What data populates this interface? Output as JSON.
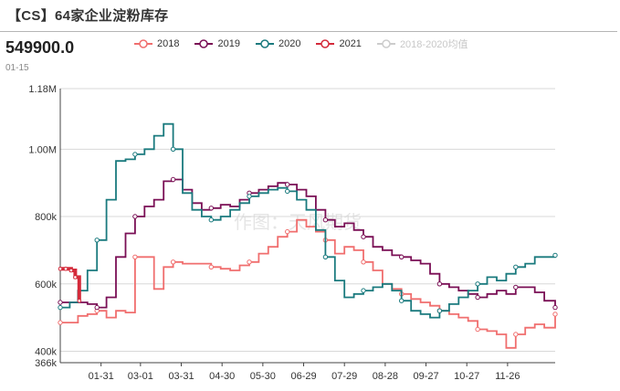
{
  "header": {
    "title": "【CS】64家企业淀粉库存",
    "value": "549900.0",
    "date": "01-15"
  },
  "watermark": "作图：天风期货",
  "legend": [
    {
      "label": "2018",
      "color": "#f06e6e",
      "faded": false
    },
    {
      "label": "2019",
      "color": "#7a0f55",
      "faded": false
    },
    {
      "label": "2020",
      "color": "#1a7a7e",
      "faded": false
    },
    {
      "label": "2021",
      "color": "#d42a3a",
      "faded": false
    },
    {
      "label": "2018-2020均值",
      "color": "#cccccc",
      "faded": true
    }
  ],
  "chart_data": {
    "type": "line",
    "title": "【CS】64家企业淀粉库存",
    "ylim": [
      366000,
      1180000
    ],
    "y_ticks": [
      "1.18M",
      "1.00M",
      "800k",
      "600k",
      "400k",
      "366k"
    ],
    "x_ticks": [
      "01-31",
      "03-01",
      "03-31",
      "04-30",
      "05-30",
      "06-29",
      "07-29",
      "08-28",
      "09-27",
      "10-27",
      "11-26"
    ],
    "grid": true,
    "series": [
      {
        "name": "2018",
        "color": "#f06e6e",
        "x": [
          "01-01",
          "01-08",
          "01-14",
          "01-21",
          "01-28",
          "02-04",
          "02-11",
          "02-18",
          "02-25",
          "03-04",
          "03-11",
          "03-18",
          "03-25",
          "04-01",
          "04-08",
          "04-15",
          "04-22",
          "04-29",
          "05-06",
          "05-13",
          "05-20",
          "05-27",
          "06-03",
          "06-10",
          "06-17",
          "06-24",
          "07-01",
          "07-08",
          "07-15",
          "07-22",
          "07-29",
          "08-05",
          "08-12",
          "08-19",
          "08-26",
          "09-02",
          "09-09",
          "09-16",
          "09-23",
          "09-30",
          "10-07",
          "10-14",
          "10-21",
          "10-28",
          "11-04",
          "11-11",
          "11-18",
          "11-25",
          "12-02",
          "12-09",
          "12-16",
          "12-23",
          "12-31"
        ],
        "values": [
          485000,
          485000,
          505000,
          510000,
          520000,
          500000,
          520000,
          515000,
          680000,
          680000,
          585000,
          650000,
          665000,
          660000,
          660000,
          660000,
          650000,
          645000,
          640000,
          655000,
          665000,
          690000,
          710000,
          740000,
          755000,
          790000,
          770000,
          755000,
          730000,
          690000,
          710000,
          700000,
          665000,
          640000,
          600000,
          585000,
          570000,
          555000,
          545000,
          535000,
          520000,
          510000,
          500000,
          490000,
          465000,
          460000,
          450000,
          410000,
          450000,
          470000,
          480000,
          470000,
          510000
        ]
      },
      {
        "name": "2019",
        "color": "#7a0f55",
        "x": [
          "01-01",
          "01-08",
          "01-14",
          "01-21",
          "01-28",
          "02-04",
          "02-11",
          "02-18",
          "02-25",
          "03-04",
          "03-11",
          "03-18",
          "03-25",
          "04-01",
          "04-08",
          "04-15",
          "04-22",
          "04-29",
          "05-06",
          "05-13",
          "05-20",
          "05-27",
          "06-03",
          "06-10",
          "06-17",
          "06-24",
          "07-01",
          "07-08",
          "07-15",
          "07-22",
          "07-29",
          "08-05",
          "08-12",
          "08-19",
          "08-26",
          "09-02",
          "09-09",
          "09-16",
          "09-23",
          "09-30",
          "10-07",
          "10-14",
          "10-21",
          "10-28",
          "11-04",
          "11-11",
          "11-18",
          "11-25",
          "12-02",
          "12-09",
          "12-16",
          "12-23",
          "12-31"
        ],
        "values": [
          545000,
          545000,
          545000,
          540000,
          530000,
          560000,
          680000,
          750000,
          800000,
          830000,
          850000,
          905000,
          910000,
          880000,
          840000,
          820000,
          825000,
          835000,
          830000,
          850000,
          870000,
          880000,
          890000,
          900000,
          895000,
          880000,
          860000,
          820000,
          790000,
          770000,
          780000,
          760000,
          740000,
          710000,
          700000,
          685000,
          680000,
          670000,
          660000,
          630000,
          600000,
          590000,
          580000,
          570000,
          560000,
          570000,
          580000,
          570000,
          590000,
          590000,
          575000,
          550000,
          530000
        ]
      },
      {
        "name": "2020",
        "color": "#1a7a7e",
        "x": [
          "01-01",
          "01-08",
          "01-14",
          "01-21",
          "01-28",
          "02-04",
          "02-11",
          "02-18",
          "02-25",
          "03-04",
          "03-11",
          "03-18",
          "03-25",
          "04-01",
          "04-08",
          "04-15",
          "04-22",
          "04-29",
          "05-06",
          "05-13",
          "05-20",
          "05-27",
          "06-03",
          "06-10",
          "06-17",
          "06-24",
          "07-01",
          "07-08",
          "07-15",
          "07-22",
          "07-29",
          "08-05",
          "08-12",
          "08-19",
          "08-26",
          "09-02",
          "09-09",
          "09-16",
          "09-23",
          "09-30",
          "10-07",
          "10-14",
          "10-21",
          "10-28",
          "11-04",
          "11-11",
          "11-18",
          "11-25",
          "12-02",
          "12-09",
          "12-16",
          "12-23",
          "12-31"
        ],
        "values": [
          530000,
          545000,
          580000,
          640000,
          730000,
          850000,
          965000,
          970000,
          985000,
          1000000,
          1040000,
          1075000,
          1000000,
          870000,
          820000,
          800000,
          790000,
          800000,
          820000,
          840000,
          860000,
          870000,
          880000,
          885000,
          875000,
          850000,
          820000,
          760000,
          680000,
          610000,
          560000,
          570000,
          580000,
          590000,
          600000,
          580000,
          550000,
          520000,
          510000,
          500000,
          520000,
          540000,
          560000,
          580000,
          600000,
          620000,
          610000,
          630000,
          650000,
          660000,
          680000,
          680000,
          685000
        ]
      },
      {
        "name": "2021",
        "color": "#d42a3a",
        "x": [
          "01-01",
          "01-05",
          "01-09",
          "01-12",
          "01-15"
        ],
        "values": [
          645000,
          645000,
          640000,
          620000,
          549900
        ]
      }
    ]
  }
}
